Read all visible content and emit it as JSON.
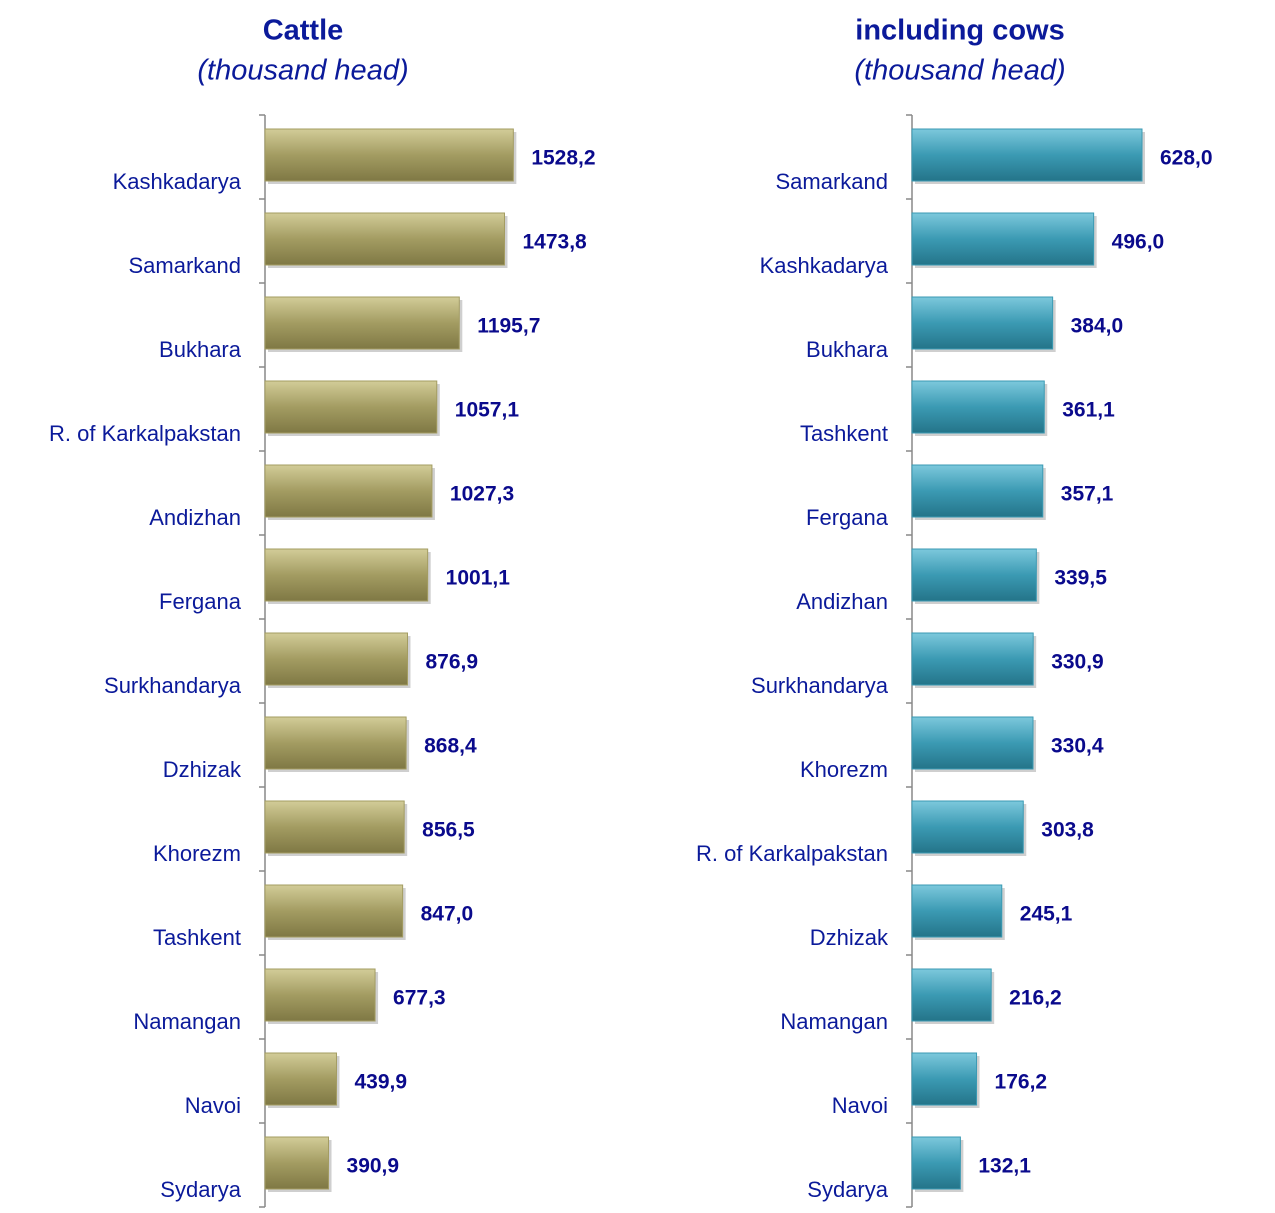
{
  "chart_data": [
    {
      "type": "bar",
      "orientation": "horizontal",
      "title": "Cattle",
      "subtitle": "(thousand head)",
      "categories": [
        "Kashkadarya",
        "Samarkand",
        "Bukhara",
        "R. of Karkalpakstan",
        "Andizhan",
        "Fergana",
        "Surkhandarya",
        "Dzhizak",
        "Khorezm",
        "Tashkent",
        "Namangan",
        "Navoi",
        "Sydarya"
      ],
      "values": [
        1528.2,
        1473.8,
        1195.7,
        1057.1,
        1027.3,
        1001.1,
        876.9,
        868.4,
        856.5,
        847.0,
        677.3,
        439.9,
        390.9
      ],
      "value_labels": [
        "1528,2",
        "1473,8",
        "1195,7",
        "1057,1",
        "1027,3",
        "1001,1",
        "876,9",
        "868,4",
        "856,5",
        "847,0",
        "677,3",
        "439,9",
        "390,9"
      ],
      "color": "#a39c62",
      "xlim": [
        0,
        2000
      ]
    },
    {
      "type": "bar",
      "orientation": "horizontal",
      "title": "including cows",
      "subtitle": "(thousand head)",
      "categories": [
        "Samarkand",
        "Kashkadarya",
        "Bukhara",
        "Tashkent",
        "Fergana",
        "Andizhan",
        "Surkhandarya",
        "Khorezm",
        "R. of Karkalpakstan",
        "Dzhizak",
        "Namangan",
        "Navoi",
        "Sydarya"
      ],
      "values": [
        628.0,
        496.0,
        384.0,
        361.1,
        357.1,
        339.5,
        330.9,
        330.4,
        303.8,
        245.1,
        216.2,
        176.2,
        132.1
      ],
      "value_labels": [
        "628,0",
        "496,0",
        "384,0",
        "361,1",
        "357,1",
        "339,5",
        "330,9",
        "330,4",
        "303,8",
        "245,1",
        "216,2",
        "176,2",
        "132,1"
      ],
      "color": "#3b9ab3",
      "xlim": [
        0,
        800
      ]
    }
  ]
}
